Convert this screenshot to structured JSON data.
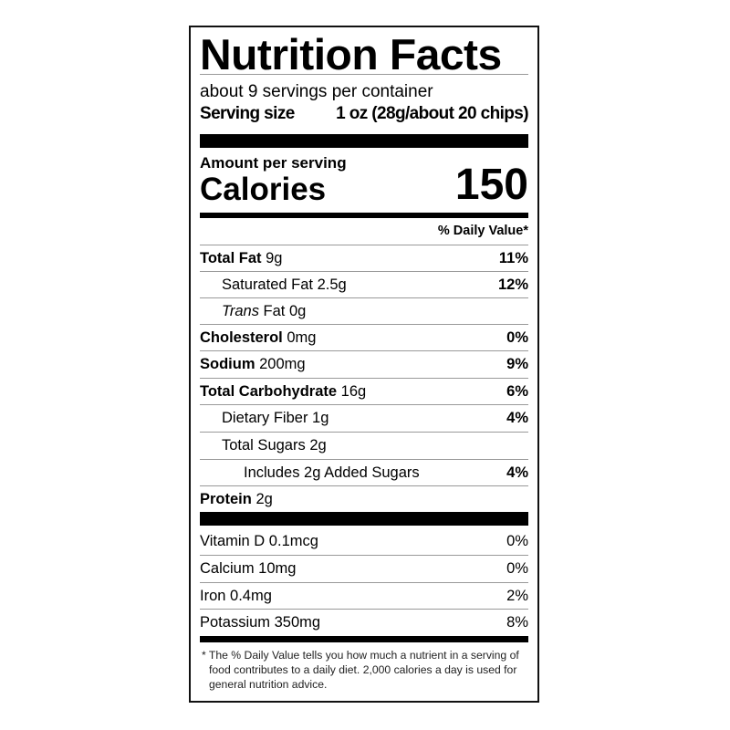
{
  "title": "Nutrition Facts",
  "servings_per_container": "about 9 servings per container",
  "serving_size_label": "Serving size",
  "serving_size_value": "1 oz (28g/about 20 chips)",
  "amount_per_serving": "Amount per serving",
  "calories_label": "Calories",
  "calories_value": "150",
  "daily_value_header": "% Daily Value*",
  "nutrients": [
    {
      "name": "Total Fat",
      "amount": "9g",
      "dv": "11%"
    },
    {
      "name": "Saturated Fat",
      "amount": "2.5g",
      "dv": "12%"
    },
    {
      "name": "Trans",
      "amount": "Fat 0g",
      "dv": ""
    },
    {
      "name": "Cholesterol",
      "amount": "0mg",
      "dv": "0%"
    },
    {
      "name": "Sodium",
      "amount": "200mg",
      "dv": "9%"
    },
    {
      "name": "Total Carbohydrate",
      "amount": "16g",
      "dv": "6%"
    },
    {
      "name": "Dietary Fiber",
      "amount": "1g",
      "dv": "4%"
    },
    {
      "name": "Total Sugars",
      "amount": "2g",
      "dv": ""
    },
    {
      "name": "Includes 2g Added Sugars",
      "amount": "",
      "dv": "4%"
    },
    {
      "name": "Protein",
      "amount": "2g",
      "dv": ""
    }
  ],
  "vitamins": [
    {
      "name": "Vitamin D 0.1mcg",
      "dv": "0%"
    },
    {
      "name": "Calcium 10mg",
      "dv": "0%"
    },
    {
      "name": "Iron 0.4mg",
      "dv": "2%"
    },
    {
      "name": "Potassium 350mg",
      "dv": "8%"
    }
  ],
  "footnote": "* The % Daily Value tells you how much a nutrient in a serving of food contributes to a daily diet. 2,000 calories a day is used for general nutrition advice."
}
